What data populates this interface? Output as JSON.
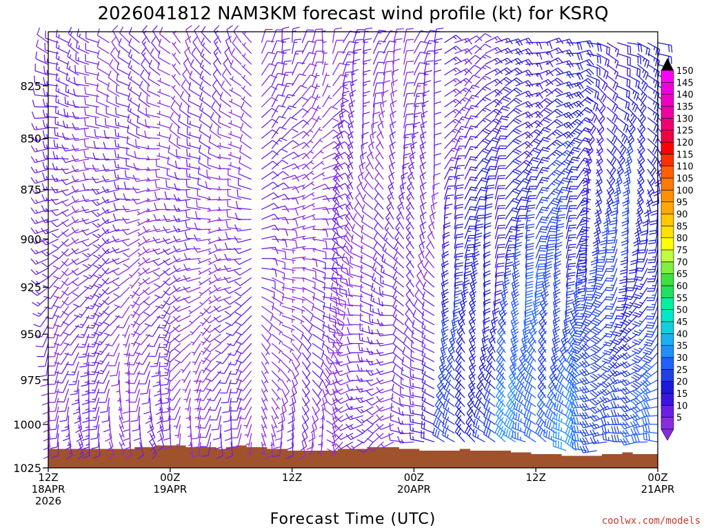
{
  "chart_data": {
    "type": "wind_barb_profile",
    "title": "2026041812 NAM3KM forecast wind profile (kt) for KSRQ",
    "xlabel": "Forecast Time (UTC)",
    "ylabel": "",
    "credit": "coolwx.com/models",
    "units": "kt",
    "x_range_hours": [
      0,
      60
    ],
    "y_range_hpa": [
      1025,
      800
    ],
    "x_ticks": [
      {
        "hour": 0,
        "lines": [
          "12Z",
          "18APR",
          "2026"
        ]
      },
      {
        "hour": 12,
        "lines": [
          "00Z",
          "19APR"
        ]
      },
      {
        "hour": 24,
        "lines": [
          "12Z"
        ]
      },
      {
        "hour": 36,
        "lines": [
          "00Z",
          "20APR"
        ]
      },
      {
        "hour": 48,
        "lines": [
          "12Z"
        ]
      },
      {
        "hour": 60,
        "lines": [
          "00Z",
          "21APR"
        ]
      }
    ],
    "y_ticks": [
      825,
      850,
      875,
      900,
      925,
      950,
      975,
      1000,
      1025
    ],
    "colorbar": {
      "levels": [
        "5",
        "10",
        "15",
        "20",
        "25",
        "30",
        "35",
        "40",
        "45",
        "50",
        "55",
        "60",
        "65",
        "70",
        "75",
        "80",
        "85",
        "90",
        "95",
        "100",
        "105",
        "110",
        "115",
        "120",
        "125",
        "130",
        "135",
        "140",
        "145",
        "150"
      ],
      "colors": [
        "#8a2be2",
        "#6a1fe8",
        "#3c14e0",
        "#1a1ad8",
        "#1e40e8",
        "#2060ff",
        "#1e90ff",
        "#1ab0f0",
        "#10d0e0",
        "#00e8c8",
        "#00f0a0",
        "#20e060",
        "#40e040",
        "#80f040",
        "#c0ff40",
        "#ffff00",
        "#ffe000",
        "#ffc800",
        "#ffa800",
        "#ff9000",
        "#ff7a00",
        "#ff6000",
        "#ff3000",
        "#ff0000",
        "#f00040",
        "#f00070",
        "#f000a0",
        "#f000c0",
        "#f000e0",
        "#ff00ff"
      ]
    },
    "terrain": {
      "color": "#a0522d",
      "surface_pressure_hpa": [
        1014,
        1014,
        1014,
        1014,
        1014,
        1014,
        1014,
        1014,
        1014,
        1013,
        1013,
        1012,
        1012,
        1012,
        1013,
        1013,
        1013,
        1014,
        1013,
        1012,
        1013,
        1013,
        1014,
        1014,
        1015,
        1015,
        1015,
        1015,
        1015,
        1014,
        1014,
        1014,
        1013,
        1013,
        1013,
        1014,
        1014,
        1015,
        1015,
        1015,
        1015,
        1014,
        1015,
        1015,
        1015,
        1015,
        1016,
        1016,
        1017,
        1017,
        1017,
        1018,
        1018,
        1018,
        1018,
        1017,
        1017,
        1016,
        1017,
        1017,
        1017
      ]
    },
    "levels_hpa": [
      1025,
      1020,
      1015,
      1010,
      1005,
      1000,
      995,
      990,
      985,
      980,
      975,
      970,
      965,
      960,
      955,
      950,
      945,
      940,
      935,
      930,
      925,
      920,
      915,
      910,
      905,
      900,
      895,
      890,
      885,
      880,
      875,
      870,
      865,
      860,
      855,
      850,
      845,
      840,
      835,
      830,
      825,
      820,
      815,
      810,
      805
    ],
    "wind_phases": [
      {
        "until_hour": 6,
        "speed_low": 12,
        "speed_high": 12,
        "dir_low": 160,
        "dir_high": 300
      },
      {
        "until_hour": 12,
        "speed_low": 10,
        "speed_high": 10,
        "dir_low": 150,
        "dir_high": 320
      },
      {
        "until_hour": 20,
        "speed_low": 9,
        "speed_high": 10,
        "dir_low": 170,
        "dir_high": 330
      },
      {
        "until_hour": 28,
        "speed_low": 8,
        "speed_high": 10,
        "dir_low": 190,
        "dir_high": 10
      },
      {
        "until_hour": 34,
        "speed_low": 10,
        "speed_high": 12,
        "dir_low": 220,
        "dir_high": 20
      },
      {
        "until_hour": 38,
        "speed_low": 15,
        "speed_high": 10,
        "dir_low": 270,
        "dir_high": 20
      },
      {
        "until_hour": 44,
        "speed_low": 28,
        "speed_high": 14,
        "dir_low": 300,
        "dir_high": 60
      },
      {
        "until_hour": 52,
        "speed_low": 36,
        "speed_high": 18,
        "dir_low": 290,
        "dir_high": 80
      },
      {
        "until_hour": 60,
        "speed_low": 30,
        "speed_high": 20,
        "dir_low": 280,
        "dir_high": 110
      }
    ]
  }
}
